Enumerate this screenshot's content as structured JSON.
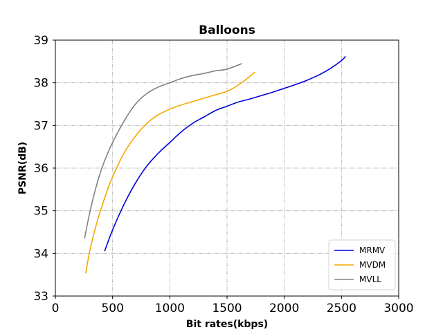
{
  "chart_data": {
    "type": "line",
    "title": "Balloons",
    "xlabel": "Bit rates(kbps)",
    "ylabel": "PSNR(dB)",
    "xlim": [
      0,
      3000
    ],
    "ylim": [
      33,
      39
    ],
    "xticks": [
      0,
      500,
      1000,
      1500,
      2000,
      2500,
      3000
    ],
    "yticks": [
      33,
      34,
      35,
      36,
      37,
      38,
      39
    ],
    "grid": true,
    "legend_position": "lower-right",
    "series": [
      {
        "name": "MRMV",
        "color": "#0000dd",
        "points": [
          [
            430,
            34.05
          ],
          [
            500,
            34.55
          ],
          [
            600,
            35.15
          ],
          [
            700,
            35.65
          ],
          [
            800,
            36.05
          ],
          [
            900,
            36.35
          ],
          [
            1000,
            36.6
          ],
          [
            1100,
            36.85
          ],
          [
            1200,
            37.05
          ],
          [
            1300,
            37.2
          ],
          [
            1400,
            37.35
          ],
          [
            1500,
            37.45
          ],
          [
            1600,
            37.55
          ],
          [
            1700,
            37.62
          ],
          [
            1800,
            37.7
          ],
          [
            1900,
            37.78
          ],
          [
            2000,
            37.87
          ],
          [
            2100,
            37.96
          ],
          [
            2200,
            38.06
          ],
          [
            2300,
            38.18
          ],
          [
            2400,
            38.33
          ],
          [
            2500,
            38.52
          ],
          [
            2535,
            38.62
          ]
        ]
      },
      {
        "name": "MVDM",
        "color": "#f5a800",
        "points": [
          [
            265,
            33.53
          ],
          [
            300,
            34.05
          ],
          [
            350,
            34.6
          ],
          [
            400,
            35.05
          ],
          [
            450,
            35.45
          ],
          [
            500,
            35.8
          ],
          [
            600,
            36.35
          ],
          [
            700,
            36.75
          ],
          [
            800,
            37.05
          ],
          [
            900,
            37.25
          ],
          [
            1000,
            37.38
          ],
          [
            1100,
            37.48
          ],
          [
            1200,
            37.56
          ],
          [
            1300,
            37.64
          ],
          [
            1400,
            37.72
          ],
          [
            1500,
            37.8
          ],
          [
            1600,
            37.95
          ],
          [
            1700,
            38.15
          ],
          [
            1745,
            38.25
          ]
        ]
      },
      {
        "name": "MVLL",
        "color": "#808080",
        "points": [
          [
            255,
            34.35
          ],
          [
            300,
            34.95
          ],
          [
            350,
            35.5
          ],
          [
            400,
            35.95
          ],
          [
            450,
            36.3
          ],
          [
            500,
            36.6
          ],
          [
            600,
            37.1
          ],
          [
            700,
            37.5
          ],
          [
            800,
            37.75
          ],
          [
            900,
            37.9
          ],
          [
            1000,
            38.0
          ],
          [
            1100,
            38.1
          ],
          [
            1200,
            38.17
          ],
          [
            1300,
            38.22
          ],
          [
            1400,
            38.28
          ],
          [
            1500,
            38.32
          ],
          [
            1630,
            38.45
          ]
        ]
      }
    ]
  }
}
